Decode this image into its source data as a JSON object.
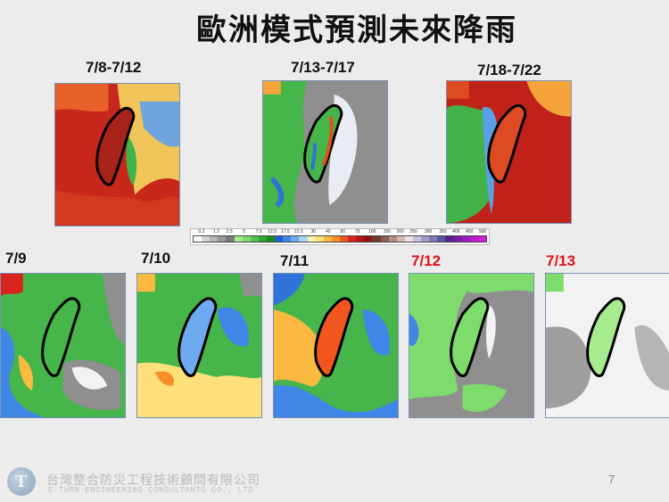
{
  "slide": {
    "title": "歐洲模式預測未來降雨",
    "page_number": "7"
  },
  "top_row": [
    {
      "label": "7/8-7/12",
      "highlight": false,
      "colors": {
        "bg": "#c8281c",
        "mid": "#e8602a",
        "cool": "#f1d98a",
        "blue": "#6fa4dc",
        "green": "#3fb348"
      }
    },
    {
      "label": "7/13-7/17",
      "highlight": false,
      "colors": {
        "bg": "#8f8f8f",
        "mid": "#b9b9b9",
        "cool": "#e9edf3",
        "blue": "#2f73d8",
        "green": "#46b54a"
      }
    },
    {
      "label": "7/18-7/22",
      "highlight": false,
      "colors": {
        "bg": "#c0221a",
        "mid": "#de4a22",
        "cool": "#f4a43a",
        "blue": "#5aa0e6",
        "green": "#41b148"
      }
    }
  ],
  "bottom_row": [
    {
      "label": "7/9",
      "highlight": false
    },
    {
      "label": "7/10",
      "highlight": false
    },
    {
      "label": "7/11",
      "highlight": false
    },
    {
      "label": "7/12",
      "highlight": true
    },
    {
      "label": "7/13",
      "highlight": true
    }
  ],
  "legend": {
    "ticks": [
      "0.2",
      "1.2",
      "2.5",
      "5",
      "7.5",
      "12.5",
      "17.5",
      "22.5",
      "30",
      "40",
      "50",
      "75",
      "100",
      "150",
      "200",
      "250",
      "300",
      "350",
      "400",
      "450",
      "500"
    ],
    "colors": [
      "#ffffff",
      "#d4d4d4",
      "#b5b5b5",
      "#979797",
      "#7a7a7a",
      "#a6ec8e",
      "#7ddc6b",
      "#4fc64b",
      "#2ca82c",
      "#1c8a1c",
      "#1f5fd0",
      "#3f86e6",
      "#6eaaf0",
      "#a8d2f6",
      "#fdf6a8",
      "#fde07a",
      "#fbb940",
      "#f78e26",
      "#f0561e",
      "#d8241a",
      "#b8121a",
      "#921010",
      "#6b3a34",
      "#8e5e54",
      "#b78a82",
      "#d9b8b2",
      "#ece0ea",
      "#c8bfdc",
      "#a39ccb",
      "#7d78b7",
      "#5c55a2",
      "#5a1f8e",
      "#7a1aa8",
      "#9c1cc0",
      "#c01ad0",
      "#d21ee0"
    ]
  },
  "footer": {
    "logo_glyph": "T",
    "company_cn": "台灣整合防災工程技術顧問有限公司",
    "company_en": "E-TURN ENGINEERING CONSULTANTS CO., LTD"
  }
}
